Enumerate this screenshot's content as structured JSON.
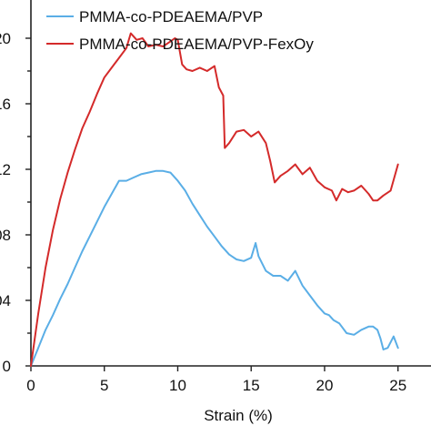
{
  "chart_data": {
    "type": "line",
    "title": "",
    "xlabel": "Strain (%)",
    "ylabel": "",
    "xlim": [
      0,
      27
    ],
    "ylim": [
      0,
      0.225
    ],
    "x_ticks": [
      0,
      5,
      10,
      15,
      20,
      25
    ],
    "x_tick_labels": [
      "0",
      "5",
      "10",
      "15",
      "20",
      "25"
    ],
    "y_ticks": [
      0,
      0.04,
      0.08,
      0.12,
      0.16,
      0.2
    ],
    "y_tick_labels": [
      "0",
      "04",
      "08",
      "12",
      "16",
      "20"
    ],
    "grid": false,
    "legend_position": "top",
    "series": [
      {
        "name": "PMMA-co-PDEAEMA/PVP",
        "color": "#5aaee6",
        "x": [
          0,
          0.5,
          1,
          1.5,
          2,
          2.5,
          3,
          3.5,
          4,
          4.5,
          5,
          5.5,
          6,
          6.5,
          7,
          7.5,
          8,
          8.5,
          9,
          9.5,
          10,
          10.5,
          11,
          11.5,
          12,
          12.5,
          13,
          13.5,
          14,
          14.5,
          15,
          15.3,
          15.5,
          16,
          16.5,
          17,
          17.5,
          18,
          18.5,
          19,
          19.5,
          20,
          20.3,
          20.6,
          21,
          21.5,
          22,
          22.5,
          23,
          23.3,
          23.6,
          23.8,
          24,
          24.3,
          24.7,
          25
        ],
        "y": [
          0,
          0.011,
          0.022,
          0.031,
          0.041,
          0.05,
          0.06,
          0.07,
          0.079,
          0.088,
          0.097,
          0.105,
          0.113,
          0.113,
          0.115,
          0.117,
          0.118,
          0.119,
          0.119,
          0.118,
          0.113,
          0.107,
          0.099,
          0.092,
          0.085,
          0.079,
          0.073,
          0.068,
          0.065,
          0.064,
          0.066,
          0.075,
          0.067,
          0.058,
          0.055,
          0.055,
          0.052,
          0.058,
          0.049,
          0.043,
          0.037,
          0.032,
          0.031,
          0.028,
          0.026,
          0.02,
          0.019,
          0.022,
          0.024,
          0.024,
          0.022,
          0.017,
          0.01,
          0.011,
          0.018,
          0.011
        ]
      },
      {
        "name": "PMMA-co-PDEAEMA/PVP-FexOy",
        "color": "#d42a2a",
        "x": [
          0,
          0.5,
          1,
          1.5,
          2,
          2.5,
          3,
          3.5,
          4,
          4.5,
          5,
          5.5,
          6,
          6.5,
          6.8,
          7.2,
          7.6,
          8,
          8.5,
          9,
          9.5,
          9.8,
          10,
          10.3,
          10.6,
          11,
          11.5,
          12,
          12.5,
          12.8,
          13.1,
          13.2,
          13.5,
          14,
          14.5,
          15,
          15.5,
          16,
          16.3,
          16.6,
          17,
          17.5,
          18,
          18.5,
          19,
          19.5,
          20,
          20.5,
          20.8,
          21.2,
          21.6,
          22,
          22.5,
          23,
          23.3,
          23.6,
          24,
          24.5,
          25
        ],
        "y": [
          0,
          0.032,
          0.06,
          0.083,
          0.102,
          0.118,
          0.132,
          0.145,
          0.155,
          0.166,
          0.176,
          0.182,
          0.188,
          0.194,
          0.203,
          0.199,
          0.2,
          0.195,
          0.196,
          0.195,
          0.198,
          0.2,
          0.199,
          0.184,
          0.181,
          0.18,
          0.182,
          0.18,
          0.183,
          0.17,
          0.165,
          0.133,
          0.136,
          0.143,
          0.144,
          0.14,
          0.143,
          0.136,
          0.125,
          0.112,
          0.116,
          0.119,
          0.123,
          0.117,
          0.121,
          0.113,
          0.109,
          0.107,
          0.101,
          0.108,
          0.106,
          0.107,
          0.11,
          0.105,
          0.101,
          0.101,
          0.104,
          0.107,
          0.123
        ]
      }
    ]
  }
}
